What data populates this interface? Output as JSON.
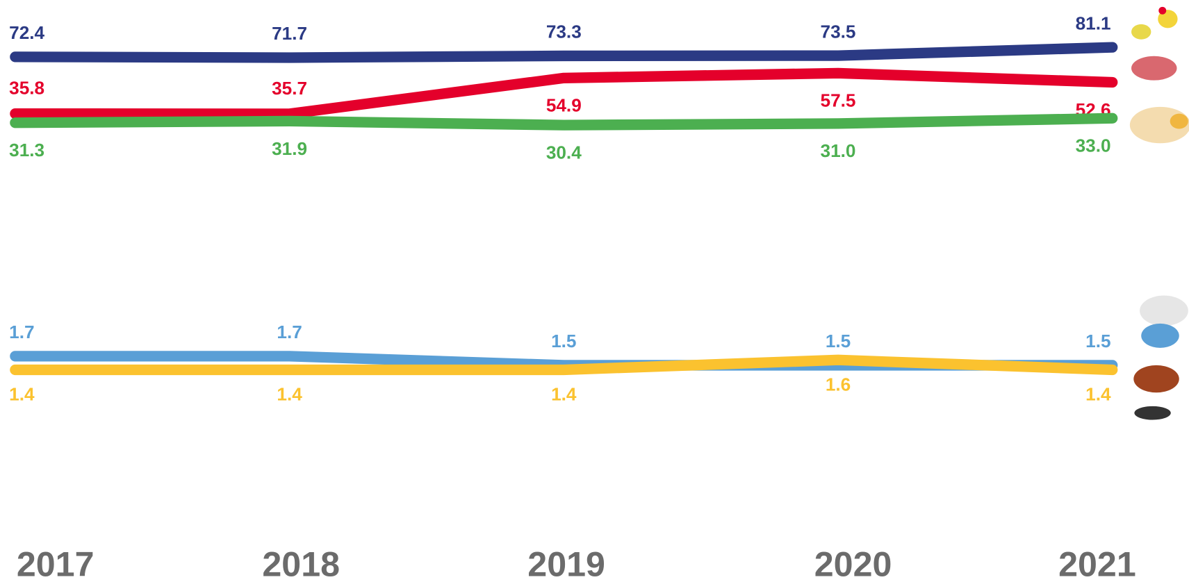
{
  "chart_data": {
    "type": "line",
    "categories": [
      "2017",
      "2018",
      "2019",
      "2020",
      "2021"
    ],
    "series": [
      {
        "color": "#2b3a84",
        "values": [
          72.4,
          71.7,
          73.3,
          73.5,
          81.1
        ],
        "value_labels": [
          "72.4",
          "71.7",
          "73.3",
          "73.5",
          "81.1"
        ]
      },
      {
        "color": "#e4002b",
        "values": [
          35.8,
          35.7,
          54.9,
          57.5,
          52.6
        ],
        "value_labels": [
          "35.8",
          "35.7",
          "54.9",
          "57.5",
          "52.6"
        ]
      },
      {
        "color": "#4caf50",
        "values": [
          31.3,
          31.9,
          30.4,
          31.0,
          33.0
        ],
        "value_labels": [
          "31.3",
          "31.9",
          "30.4",
          "31.0",
          "33.0"
        ]
      },
      {
        "color": "#5a9fd6",
        "values": [
          1.7,
          1.7,
          1.5,
          1.5,
          1.5
        ],
        "value_labels": [
          "1.7",
          "1.7",
          "1.5",
          "1.5",
          "1.5"
        ]
      },
      {
        "color": "#fbc22f",
        "values": [
          1.4,
          1.4,
          1.4,
          1.6,
          1.4
        ],
        "value_labels": [
          "1.4",
          "1.4",
          "1.4",
          "1.6",
          "1.4"
        ]
      }
    ]
  }
}
